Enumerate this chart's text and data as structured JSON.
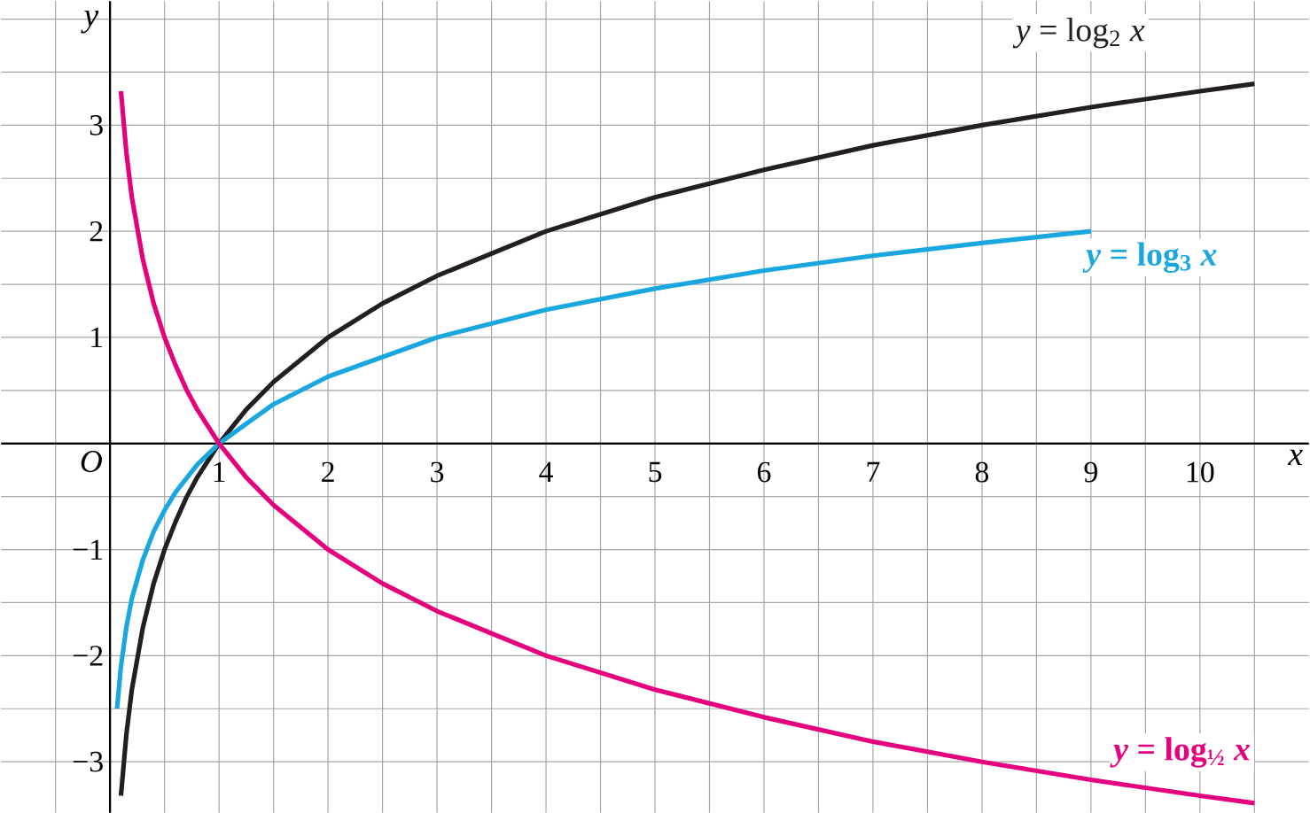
{
  "chart_data": {
    "type": "line",
    "xlabel": "x",
    "ylabel": "y",
    "annotations": [
      "O"
    ],
    "xlim": [
      -1,
      11
    ],
    "ylim": [
      -3.48,
      4.17
    ],
    "xticks": [
      {
        "value": -0.5,
        "label": null
      },
      {
        "value": 0,
        "label": null
      },
      {
        "value": 0.5,
        "label": null
      },
      1,
      {
        "value": 1.5,
        "label": null
      },
      2,
      {
        "value": 2.5,
        "label": null
      },
      3,
      {
        "value": 3.5,
        "label": null
      },
      4,
      {
        "value": 4.5,
        "label": null
      },
      5,
      {
        "value": 5.5,
        "label": null
      },
      6,
      {
        "value": 6.5,
        "label": null
      },
      7,
      {
        "value": 7.5,
        "label": null
      },
      8,
      {
        "value": 8.5,
        "label": null
      },
      9,
      {
        "value": 9.5,
        "label": null
      },
      10,
      {
        "value": 10.5,
        "label": null
      }
    ],
    "yticks": [
      {
        "value": -3,
        "label": "−3"
      },
      {
        "value": -2.5,
        "label": null
      },
      {
        "value": -2,
        "label": "−2"
      },
      {
        "value": -1.5,
        "label": null
      },
      {
        "value": -1,
        "label": "−1"
      },
      {
        "value": -0.5,
        "label": null
      },
      {
        "value": 0,
        "label": null
      },
      {
        "value": 0.5,
        "label": null
      },
      1,
      {
        "value": 1.5,
        "label": null
      },
      2,
      {
        "value": 2.5,
        "label": null
      },
      3,
      {
        "value": 3.5,
        "label": null
      },
      {
        "value": 4,
        "label": null
      }
    ],
    "grid": true,
    "series": [
      {
        "name": "*y* = log$_{2}$ *x*",
        "color": "#231f20",
        "x": [
          0.1,
          0.15,
          0.2,
          0.3,
          0.4,
          0.5,
          0.6,
          0.7,
          0.8,
          1,
          1.25,
          1.5,
          2,
          2.5,
          3,
          4,
          5,
          6,
          7,
          8,
          9,
          10,
          10.5
        ],
        "values": [
          -3.32,
          -2.74,
          -2.32,
          -1.74,
          -1.32,
          -1,
          -0.74,
          -0.51,
          -0.32,
          0,
          0.32,
          0.58,
          1,
          1.32,
          1.58,
          2,
          2.32,
          2.58,
          2.81,
          3,
          3.17,
          3.32,
          3.39
        ]
      },
      {
        "name": "*y* = log$_{3}$ *x*",
        "color": "#1aa7e0",
        "x": [
          0.064,
          0.1,
          0.15,
          0.2,
          0.3,
          0.4,
          0.5,
          0.6,
          0.8,
          1,
          1.5,
          2,
          3,
          4,
          5,
          6,
          7,
          8,
          9
        ],
        "values": [
          -2.5,
          -2.1,
          -1.73,
          -1.46,
          -1.1,
          -0.83,
          -0.63,
          -0.46,
          -0.2,
          0,
          0.37,
          0.63,
          1,
          1.26,
          1.46,
          1.63,
          1.77,
          1.89,
          2
        ]
      },
      {
        "name": "*y* = log$_{½}$ *x*",
        "color": "#e5007e",
        "x": [
          0.1,
          0.15,
          0.2,
          0.3,
          0.4,
          0.5,
          0.6,
          0.7,
          0.8,
          1,
          1.25,
          1.5,
          2,
          2.5,
          3,
          4,
          5,
          6,
          7,
          8,
          9,
          10,
          10.5
        ],
        "values": [
          3.32,
          2.74,
          2.32,
          1.74,
          1.32,
          1,
          0.74,
          0.51,
          0.32,
          0,
          -0.32,
          -0.58,
          -1,
          -1.32,
          -1.58,
          -2,
          -2.32,
          -2.58,
          -2.81,
          -3,
          -3.17,
          -3.32,
          -3.39
        ]
      }
    ]
  }
}
